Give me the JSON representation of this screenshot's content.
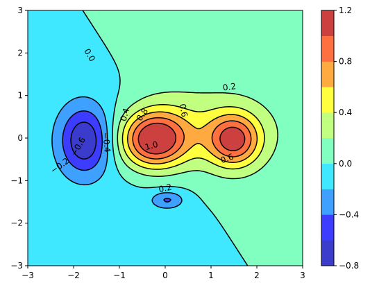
{
  "chart_data": {
    "type": "contour",
    "title": "",
    "xlabel": "",
    "ylabel": "",
    "xlim": [
      -3,
      3
    ],
    "ylim": [
      -3,
      3
    ],
    "x_ticks": [
      "−3",
      "−2",
      "−1",
      "0",
      "1",
      "2",
      "3"
    ],
    "x_tick_values": [
      -3,
      -2,
      -1,
      0,
      1,
      2,
      3
    ],
    "y_ticks": [
      "−3",
      "−2",
      "−1",
      "0",
      "1",
      "2",
      "3"
    ],
    "y_tick_values": [
      -3,
      -2,
      -1,
      0,
      1,
      2,
      3
    ],
    "fill_levels": [
      -0.8,
      -0.6,
      -0.4,
      -0.2,
      0.0,
      0.2,
      0.4,
      0.6,
      0.8,
      1.0,
      1.2
    ],
    "line_levels": [
      -0.6,
      -0.4,
      -0.2,
      0.0,
      0.2,
      0.4,
      0.6,
      0.8,
      1.0
    ],
    "negative_linestyle": "dashed",
    "colormap": "jet",
    "band_colors": [
      "#3b3bcc",
      "#3d3dff",
      "#3fa0ff",
      "#40e8ff",
      "#80ffc0",
      "#c0ff80",
      "#ffff40",
      "#ffaa40",
      "#ff7040",
      "#cc4040"
    ],
    "colorbar_ticks": [
      "−0.8",
      "−0.4",
      "0.0",
      "0.4",
      "0.8",
      "1.2"
    ],
    "colorbar_tick_values": [
      -0.8,
      -0.4,
      0.0,
      0.4,
      0.8,
      1.2
    ],
    "contour_labels": [
      {
        "text": "0.0",
        "x": -1.65,
        "y": 1.95,
        "rot": 60
      },
      {
        "text": "0.2",
        "x": 1.4,
        "y": 1.2,
        "rot": -8
      },
      {
        "text": "0.2",
        "x": 0.0,
        "y": -1.18,
        "rot": -12
      },
      {
        "text": "0.4",
        "x": -0.88,
        "y": 0.55,
        "rot": -75
      },
      {
        "text": "0.6",
        "x": 0.4,
        "y": 0.65,
        "rot": 80
      },
      {
        "text": "0.6",
        "x": 1.35,
        "y": -0.48,
        "rot": -20
      },
      {
        "text": "0.8",
        "x": -0.5,
        "y": 0.55,
        "rot": -55
      },
      {
        "text": "1.0",
        "x": -0.3,
        "y": -0.18,
        "rot": -15
      },
      {
        "text": "−0.2",
        "x": -2.3,
        "y": -0.65,
        "rot": -35
      },
      {
        "text": "−0.4",
        "x": -1.28,
        "y": -0.1,
        "rot": 85
      },
      {
        "text": "−0.6",
        "x": -1.9,
        "y": -0.2,
        "rot": -60
      }
    ]
  }
}
